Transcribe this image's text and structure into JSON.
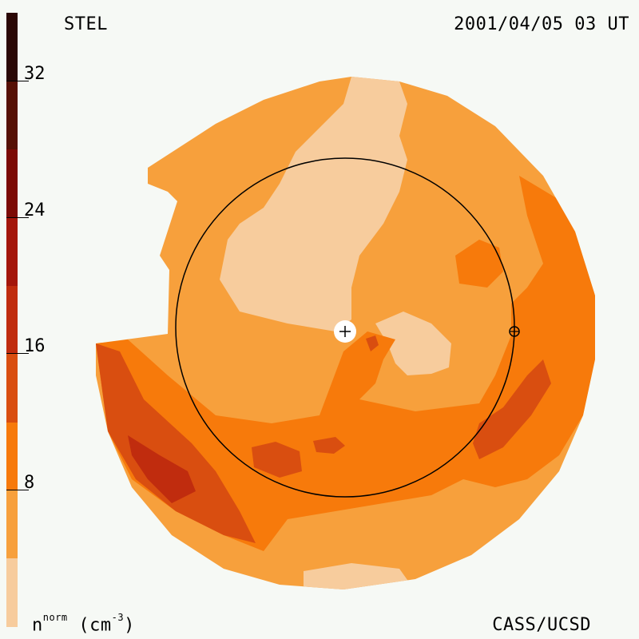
{
  "header": {
    "left_label": "STEL",
    "right_label": "2001/04/05 03 UT"
  },
  "footer": {
    "credit": "CASS/UCSD",
    "units_base": "n",
    "units_sup": "norm",
    "units_rest": " (cm",
    "units_exp": "-3",
    "units_close": ")"
  },
  "colorbar": {
    "ticks": [
      "8",
      "16",
      "24",
      "32"
    ],
    "colors": [
      "#f7cc9d",
      "#f7a03c",
      "#f77a0b",
      "#d94e10",
      "#c02c0e",
      "#a4160b",
      "#7c0a05",
      "#561005",
      "#2b0806"
    ]
  },
  "map": {
    "observer_icon": "sun-plus-icon",
    "earth_icon": "earth-circle-cross-icon",
    "colors": {
      "lightest": "#f7cc9d",
      "light": "#f7a03c",
      "medium": "#f77a0b",
      "dark": "#d94e10",
      "darker": "#c02c0e"
    }
  }
}
